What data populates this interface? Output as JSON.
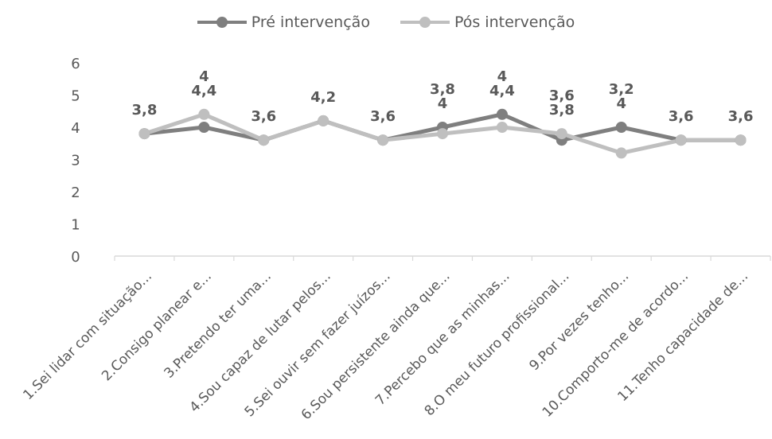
{
  "chart_data": {
    "type": "line",
    "categories": [
      "1.Sei lidar com situação...",
      "2.Consigo planear e...",
      "3.Pretendo ter uma...",
      "4.Sou capaz de lutar pelos...",
      "5.Sei ouvir sem fazer juízos...",
      "6.Sou persistente ainda que...",
      "7.Percebo que as minhas...",
      "8.O meu futuro profissional...",
      "9.Por vezes tenho...",
      "10.Comporto-me de acordo...",
      "11.Tenho capacidade de..."
    ],
    "series": [
      {
        "name": "Pré intervenção",
        "color": "#7f7f7f",
        "values": [
          3.8,
          4.0,
          3.6,
          4.2,
          3.6,
          4.0,
          4.4,
          3.6,
          4.0,
          3.6,
          3.6
        ],
        "labels": [
          "3,8",
          "4",
          "3,6",
          "4,2",
          "3,6",
          "4",
          "4,4",
          "3,6",
          "4",
          "3,6",
          "3,6"
        ]
      },
      {
        "name": "Pós intervenção",
        "color": "#bfbfbf",
        "values": [
          3.8,
          4.4,
          3.6,
          4.2,
          3.6,
          3.8,
          4.0,
          3.8,
          3.2,
          3.6,
          3.6
        ],
        "labels": [
          "3,8",
          "4,4",
          "3,6",
          "4,2",
          "3,6",
          "3,8",
          "4",
          "3,8",
          "3,2",
          "3,6",
          "3,6"
        ]
      }
    ],
    "ylim": [
      0,
      6
    ],
    "yticks": [
      "0",
      "1",
      "2",
      "3",
      "4",
      "5",
      "6"
    ],
    "grid": false,
    "legend": "top-center"
  }
}
